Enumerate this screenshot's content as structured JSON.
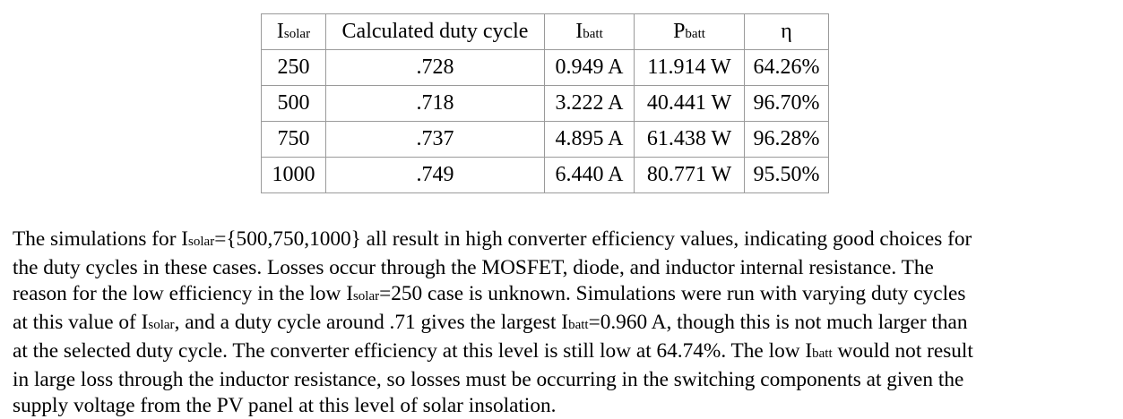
{
  "table": {
    "headers": {
      "isolar_main": "I",
      "isolar_sub": "solar",
      "duty": "Calculated duty cycle",
      "ibatt_main": "I",
      "ibatt_sub": "batt",
      "pbatt_main": "P",
      "pbatt_sub": "batt",
      "eta": "η"
    },
    "rows": [
      {
        "isolar": "250",
        "duty": ".728",
        "ibatt": "0.949 A",
        "pbatt": "11.914 W",
        "eta": "64.26%"
      },
      {
        "isolar": "500",
        "duty": ".718",
        "ibatt": "3.222 A",
        "pbatt": "40.441 W",
        "eta": "96.70%"
      },
      {
        "isolar": "750",
        "duty": ".737",
        "ibatt": "4.895 A",
        "pbatt": "61.438 W",
        "eta": "96.28%"
      },
      {
        "isolar": "1000",
        "duty": ".749",
        "ibatt": "6.440 A",
        "pbatt": "80.771 W",
        "eta": "95.50%"
      }
    ]
  },
  "paragraph": {
    "l1_a": "The simulations for I",
    "l1_sub": "solar",
    "l1_b": "={500,750,1000} all result in high converter efficiency values, indicating good choices for",
    "l2": "the duty cycles in these cases. Losses occur through the MOSFET, diode, and inductor internal resistance. The",
    "l3_a": "reason for the low efficiency in the low I",
    "l3_sub": "solar",
    "l3_b": "=250 case is unknown. Simulations were run with varying duty cycles",
    "l4_a": "at this value of I",
    "l4_sub1": "solar",
    "l4_b": ", and a duty cycle around .71 gives the largest I",
    "l4_sub2": "batt",
    "l4_c": "=0.960 A, though this is not much larger than",
    "l5": "at the selected duty cycle. The converter efficiency at this level is still low at 64.74%. The low I",
    "l5_sub": "batt",
    "l5_b": " would not result",
    "l6": "in large loss through the inductor resistance, so losses must be occurring in the switching components at given the",
    "l7": "supply voltage from the PV panel at this level of solar insolation."
  }
}
